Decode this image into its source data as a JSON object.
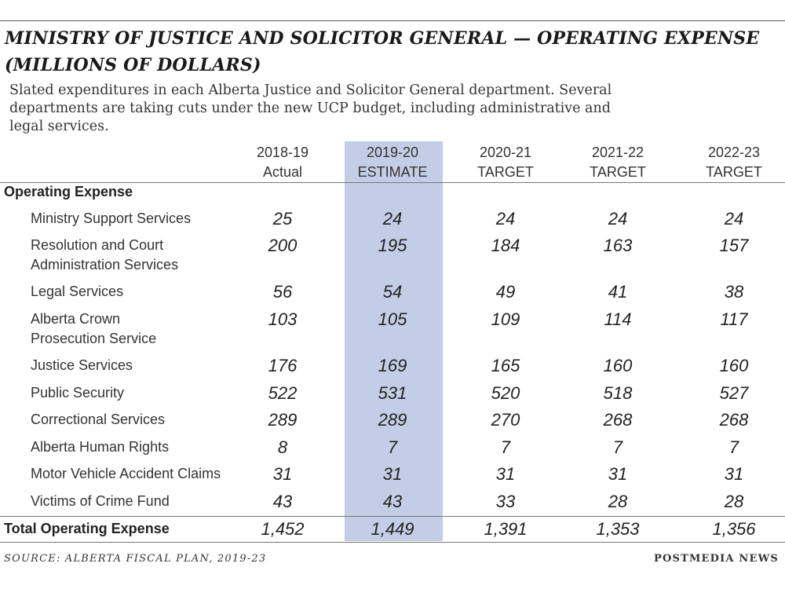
{
  "chart_data": {
    "type": "table",
    "title_line1": "MINISTRY OF JUSTICE AND SOLICITOR GENERAL — OPERATING EXPENSE",
    "title_line2": "(MILLIONS OF DOLLARS)",
    "subtitle_line1": "Slated expenditures in each Alberta Justice and Solicitor General department. Several",
    "subtitle_line2": "departments are taking cuts under the new UCP budget, including administrative and",
    "subtitle_line3": "legal services.",
    "section_label": "Operating Expense",
    "columns": [
      {
        "year": "2018-19",
        "kind": "Actual"
      },
      {
        "year": "2019-20",
        "kind": "ESTIMATE"
      },
      {
        "year": "2020-21",
        "kind": "TARGET"
      },
      {
        "year": "2021-22",
        "kind": "TARGET"
      },
      {
        "year": "2022-23",
        "kind": "TARGET"
      }
    ],
    "highlight_color": "#c3cde5",
    "rows": [
      {
        "line1": "Ministry Support Services",
        "line2": "",
        "values": [
          "25",
          "24",
          "24",
          "24",
          "24"
        ]
      },
      {
        "line1": "Resolution and Court",
        "line2": "Administration Services",
        "values": [
          "200",
          "195",
          "184",
          "163",
          "157"
        ]
      },
      {
        "line1": "Legal Services",
        "line2": "",
        "values": [
          "56",
          "54",
          "49",
          "41",
          "38"
        ]
      },
      {
        "line1": "Alberta Crown",
        "line2": "Prosecution Service",
        "values": [
          "103",
          "105",
          "109",
          "114",
          "117"
        ]
      },
      {
        "line1": "Justice Services",
        "line2": "",
        "values": [
          "176",
          "169",
          "165",
          "160",
          "160"
        ]
      },
      {
        "line1": "Public Security",
        "line2": "",
        "values": [
          "522",
          "531",
          "520",
          "518",
          "527"
        ]
      },
      {
        "line1": "Correctional Services",
        "line2": "",
        "values": [
          "289",
          "289",
          "270",
          "268",
          "268"
        ]
      },
      {
        "line1": "Alberta Human Rights",
        "line2": "",
        "values": [
          "8",
          "7",
          "7",
          "7",
          "7"
        ]
      },
      {
        "line1": "Motor Vehicle Accident Claims",
        "line2": "",
        "values": [
          "31",
          "31",
          "31",
          "31",
          "31"
        ]
      },
      {
        "line1": "Victims of Crime Fund",
        "line2": "",
        "values": [
          "43",
          "43",
          "33",
          "28",
          "28"
        ]
      }
    ],
    "total": {
      "label": "Total Operating Expense",
      "values": [
        "1,452",
        "1,449",
        "1,391",
        "1,353",
        "1,356"
      ]
    }
  },
  "footer": {
    "source": "SOURCE: ALBERTA FISCAL PLAN, 2019-23",
    "credit": "POSTMEDIA NEWS"
  }
}
